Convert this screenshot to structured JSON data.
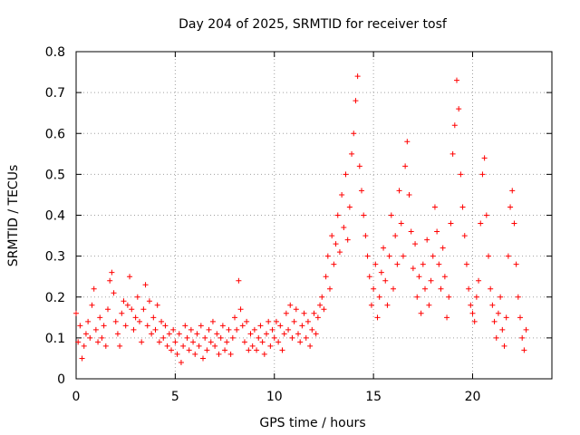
{
  "chart_data": {
    "type": "scatter",
    "title": "Day 204 of 2025, SRMTID for receiver tosf",
    "xlabel": "GPS time / hours",
    "ylabel": "SRMTID / TECUs",
    "xlim": [
      0,
      24
    ],
    "ylim": [
      0,
      0.8
    ],
    "xticks": [
      0,
      5,
      10,
      15,
      20
    ],
    "xtick_labels": [
      "0",
      "5",
      "10",
      "15",
      "20"
    ],
    "yticks": [
      0,
      0.1,
      0.2,
      0.3,
      0.4,
      0.5,
      0.6,
      0.7,
      0.8
    ],
    "ytick_labels": [
      "0",
      "0.1",
      "0.2",
      "0.3",
      "0.4",
      "0.5",
      "0.6",
      "0.7",
      "0.8"
    ],
    "grid": true,
    "marker": "+",
    "color": "#ff0000",
    "series": [
      {
        "name": "SRMTID",
        "points": [
          [
            0.0,
            0.16
          ],
          [
            0.1,
            0.09
          ],
          [
            0.2,
            0.13
          ],
          [
            0.3,
            0.05
          ],
          [
            0.4,
            0.08
          ],
          [
            0.5,
            0.11
          ],
          [
            0.6,
            0.14
          ],
          [
            0.7,
            0.1
          ],
          [
            0.8,
            0.18
          ],
          [
            0.9,
            0.22
          ],
          [
            1.0,
            0.12
          ],
          [
            1.1,
            0.09
          ],
          [
            1.2,
            0.15
          ],
          [
            1.3,
            0.1
          ],
          [
            1.4,
            0.13
          ],
          [
            1.5,
            0.08
          ],
          [
            1.6,
            0.17
          ],
          [
            1.7,
            0.24
          ],
          [
            1.8,
            0.26
          ],
          [
            1.9,
            0.21
          ],
          [
            2.0,
            0.14
          ],
          [
            2.1,
            0.11
          ],
          [
            2.2,
            0.08
          ],
          [
            2.3,
            0.16
          ],
          [
            2.4,
            0.19
          ],
          [
            2.5,
            0.13
          ],
          [
            2.6,
            0.18
          ],
          [
            2.7,
            0.25
          ],
          [
            2.8,
            0.17
          ],
          [
            2.9,
            0.12
          ],
          [
            3.0,
            0.15
          ],
          [
            3.1,
            0.2
          ],
          [
            3.2,
            0.14
          ],
          [
            3.3,
            0.09
          ],
          [
            3.4,
            0.17
          ],
          [
            3.5,
            0.23
          ],
          [
            3.6,
            0.13
          ],
          [
            3.7,
            0.19
          ],
          [
            3.8,
            0.11
          ],
          [
            3.9,
            0.15
          ],
          [
            4.0,
            0.12
          ],
          [
            4.1,
            0.18
          ],
          [
            4.2,
            0.09
          ],
          [
            4.3,
            0.14
          ],
          [
            4.4,
            0.1
          ],
          [
            4.5,
            0.13
          ],
          [
            4.6,
            0.08
          ],
          [
            4.7,
            0.11
          ],
          [
            4.8,
            0.07
          ],
          [
            4.9,
            0.12
          ],
          [
            5.0,
            0.09
          ],
          [
            5.1,
            0.06
          ],
          [
            5.2,
            0.11
          ],
          [
            5.3,
            0.04
          ],
          [
            5.4,
            0.08
          ],
          [
            5.5,
            0.13
          ],
          [
            5.6,
            0.1
          ],
          [
            5.7,
            0.07
          ],
          [
            5.8,
            0.12
          ],
          [
            5.9,
            0.09
          ],
          [
            6.0,
            0.06
          ],
          [
            6.1,
            0.11
          ],
          [
            6.2,
            0.08
          ],
          [
            6.3,
            0.13
          ],
          [
            6.4,
            0.05
          ],
          [
            6.5,
            0.1
          ],
          [
            6.6,
            0.07
          ],
          [
            6.7,
            0.12
          ],
          [
            6.8,
            0.09
          ],
          [
            6.9,
            0.14
          ],
          [
            7.0,
            0.08
          ],
          [
            7.1,
            0.11
          ],
          [
            7.2,
            0.06
          ],
          [
            7.3,
            0.1
          ],
          [
            7.4,
            0.13
          ],
          [
            7.5,
            0.07
          ],
          [
            7.6,
            0.09
          ],
          [
            7.7,
            0.12
          ],
          [
            7.8,
            0.06
          ],
          [
            7.9,
            0.1
          ],
          [
            8.0,
            0.15
          ],
          [
            8.1,
            0.12
          ],
          [
            8.2,
            0.24
          ],
          [
            8.3,
            0.17
          ],
          [
            8.4,
            0.13
          ],
          [
            8.5,
            0.09
          ],
          [
            8.6,
            0.14
          ],
          [
            8.7,
            0.07
          ],
          [
            8.8,
            0.11
          ],
          [
            8.9,
            0.08
          ],
          [
            9.0,
            0.12
          ],
          [
            9.1,
            0.07
          ],
          [
            9.2,
            0.1
          ],
          [
            9.3,
            0.13
          ],
          [
            9.4,
            0.09
          ],
          [
            9.5,
            0.06
          ],
          [
            9.6,
            0.11
          ],
          [
            9.7,
            0.14
          ],
          [
            9.8,
            0.08
          ],
          [
            9.9,
            0.12
          ],
          [
            10.0,
            0.1
          ],
          [
            10.1,
            0.14
          ],
          [
            10.2,
            0.09
          ],
          [
            10.3,
            0.13
          ],
          [
            10.4,
            0.07
          ],
          [
            10.5,
            0.11
          ],
          [
            10.6,
            0.16
          ],
          [
            10.7,
            0.12
          ],
          [
            10.8,
            0.18
          ],
          [
            10.9,
            0.1
          ],
          [
            11.0,
            0.14
          ],
          [
            11.1,
            0.17
          ],
          [
            11.2,
            0.11
          ],
          [
            11.3,
            0.09
          ],
          [
            11.4,
            0.13
          ],
          [
            11.5,
            0.16
          ],
          [
            11.6,
            0.1
          ],
          [
            11.7,
            0.14
          ],
          [
            11.8,
            0.08
          ],
          [
            11.9,
            0.12
          ],
          [
            12.0,
            0.16
          ],
          [
            12.1,
            0.11
          ],
          [
            12.2,
            0.15
          ],
          [
            12.3,
            0.18
          ],
          [
            12.4,
            0.2
          ],
          [
            12.5,
            0.17
          ],
          [
            12.6,
            0.25
          ],
          [
            12.7,
            0.3
          ],
          [
            12.8,
            0.22
          ],
          [
            12.9,
            0.35
          ],
          [
            13.0,
            0.28
          ],
          [
            13.1,
            0.33
          ],
          [
            13.2,
            0.4
          ],
          [
            13.3,
            0.31
          ],
          [
            13.4,
            0.45
          ],
          [
            13.5,
            0.37
          ],
          [
            13.6,
            0.5
          ],
          [
            13.7,
            0.34
          ],
          [
            13.8,
            0.42
          ],
          [
            13.9,
            0.55
          ],
          [
            14.0,
            0.6
          ],
          [
            14.1,
            0.68
          ],
          [
            14.2,
            0.74
          ],
          [
            14.3,
            0.52
          ],
          [
            14.4,
            0.46
          ],
          [
            14.5,
            0.4
          ],
          [
            14.6,
            0.35
          ],
          [
            14.7,
            0.3
          ],
          [
            14.8,
            0.25
          ],
          [
            14.9,
            0.18
          ],
          [
            15.0,
            0.22
          ],
          [
            15.1,
            0.28
          ],
          [
            15.2,
            0.15
          ],
          [
            15.3,
            0.2
          ],
          [
            15.4,
            0.26
          ],
          [
            15.5,
            0.32
          ],
          [
            15.6,
            0.24
          ],
          [
            15.7,
            0.18
          ],
          [
            15.8,
            0.3
          ],
          [
            15.9,
            0.4
          ],
          [
            16.0,
            0.22
          ],
          [
            16.1,
            0.35
          ],
          [
            16.2,
            0.28
          ],
          [
            16.3,
            0.46
          ],
          [
            16.4,
            0.38
          ],
          [
            16.5,
            0.3
          ],
          [
            16.6,
            0.52
          ],
          [
            16.7,
            0.58
          ],
          [
            16.8,
            0.45
          ],
          [
            16.9,
            0.36
          ],
          [
            17.0,
            0.27
          ],
          [
            17.1,
            0.33
          ],
          [
            17.2,
            0.2
          ],
          [
            17.3,
            0.25
          ],
          [
            17.4,
            0.16
          ],
          [
            17.5,
            0.28
          ],
          [
            17.6,
            0.22
          ],
          [
            17.7,
            0.34
          ],
          [
            17.8,
            0.18
          ],
          [
            17.9,
            0.24
          ],
          [
            18.0,
            0.3
          ],
          [
            18.1,
            0.42
          ],
          [
            18.2,
            0.36
          ],
          [
            18.3,
            0.28
          ],
          [
            18.4,
            0.22
          ],
          [
            18.5,
            0.32
          ],
          [
            18.6,
            0.25
          ],
          [
            18.7,
            0.15
          ],
          [
            18.8,
            0.2
          ],
          [
            18.9,
            0.38
          ],
          [
            19.0,
            0.55
          ],
          [
            19.1,
            0.62
          ],
          [
            19.2,
            0.73
          ],
          [
            19.3,
            0.66
          ],
          [
            19.4,
            0.5
          ],
          [
            19.5,
            0.42
          ],
          [
            19.6,
            0.35
          ],
          [
            19.7,
            0.28
          ],
          [
            19.8,
            0.22
          ],
          [
            19.9,
            0.18
          ],
          [
            20.0,
            0.16
          ],
          [
            20.1,
            0.14
          ],
          [
            20.2,
            0.2
          ],
          [
            20.3,
            0.24
          ],
          [
            20.4,
            0.38
          ],
          [
            20.5,
            0.5
          ],
          [
            20.6,
            0.54
          ],
          [
            20.7,
            0.4
          ],
          [
            20.8,
            0.3
          ],
          [
            20.9,
            0.22
          ],
          [
            21.0,
            0.18
          ],
          [
            21.1,
            0.14
          ],
          [
            21.2,
            0.1
          ],
          [
            21.3,
            0.16
          ],
          [
            21.4,
            0.2
          ],
          [
            21.5,
            0.12
          ],
          [
            21.6,
            0.08
          ],
          [
            21.7,
            0.15
          ],
          [
            21.8,
            0.3
          ],
          [
            21.9,
            0.42
          ],
          [
            22.0,
            0.46
          ],
          [
            22.1,
            0.38
          ],
          [
            22.2,
            0.28
          ],
          [
            22.3,
            0.2
          ],
          [
            22.4,
            0.15
          ],
          [
            22.5,
            0.1
          ],
          [
            22.6,
            0.07
          ],
          [
            22.7,
            0.12
          ]
        ]
      }
    ]
  }
}
